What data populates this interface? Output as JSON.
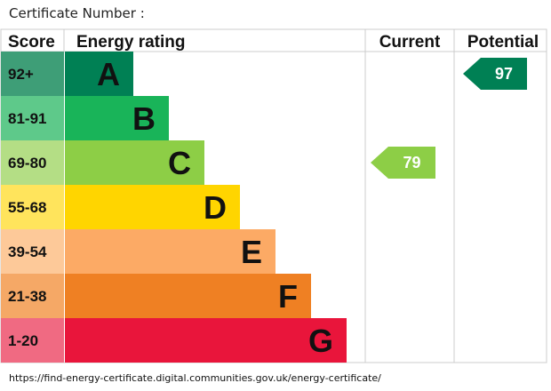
{
  "certificate_label": "Certificate Number :",
  "footer_url": "https://find-energy-certificate.digital.communities.gov.uk/energy-certificate/",
  "chart_data": {
    "type": "bar",
    "headers": {
      "score": "Score",
      "rating": "Energy rating",
      "current": "Current",
      "potential": "Potential"
    },
    "bands": [
      {
        "letter": "A",
        "range": "92+",
        "color": "#008054",
        "score_color": "#3e9e77"
      },
      {
        "letter": "B",
        "range": "81-91",
        "color": "#19b459",
        "score_color": "#5ec98a"
      },
      {
        "letter": "C",
        "range": "69-80",
        "color": "#8dce46",
        "score_color": "#b4de85"
      },
      {
        "letter": "D",
        "range": "55-68",
        "color": "#ffd500",
        "score_color": "#ffe45c"
      },
      {
        "letter": "E",
        "range": "39-54",
        "color": "#fcaa65",
        "score_color": "#fdc999"
      },
      {
        "letter": "F",
        "range": "21-38",
        "color": "#ef8023",
        "score_color": "#f5a866"
      },
      {
        "letter": "G",
        "range": "1-20",
        "color": "#e9153b",
        "score_color": "#f06a82"
      }
    ],
    "current": {
      "value": 79,
      "band": "C",
      "color": "#8dce46"
    },
    "potential": {
      "value": 97,
      "band": "A",
      "color": "#008054"
    }
  }
}
